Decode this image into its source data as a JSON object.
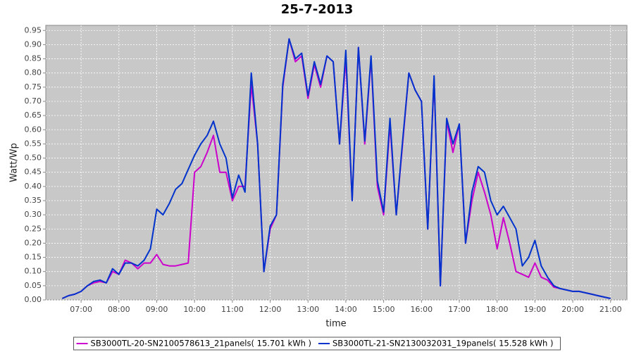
{
  "chart_data": {
    "type": "line",
    "title": "25-7-2013",
    "xlabel": "time",
    "ylabel": "Watt/Wp",
    "x": [
      390,
      400,
      410,
      420,
      430,
      440,
      450,
      460,
      470,
      480,
      490,
      500,
      510,
      520,
      530,
      540,
      550,
      560,
      570,
      580,
      590,
      600,
      610,
      620,
      630,
      640,
      650,
      660,
      670,
      680,
      690,
      700,
      710,
      720,
      730,
      740,
      750,
      760,
      770,
      780,
      790,
      800,
      810,
      820,
      830,
      840,
      850,
      860,
      870,
      880,
      890,
      900,
      910,
      920,
      930,
      940,
      950,
      960,
      970,
      980,
      990,
      1000,
      1010,
      1020,
      1030,
      1040,
      1050,
      1060,
      1070,
      1080,
      1090,
      1100,
      1110,
      1120,
      1130,
      1140,
      1150,
      1160,
      1170,
      1180,
      1190,
      1200,
      1210,
      1220,
      1230,
      1240,
      1250,
      1260
    ],
    "series": [
      {
        "name": "SB3000TL-20-SN2100578613_21panels( 15.701 kWh )",
        "color": "#cc00cc",
        "values": [
          0.005,
          0.015,
          0.02,
          0.03,
          0.05,
          0.06,
          0.065,
          0.06,
          0.1,
          0.09,
          0.14,
          0.13,
          0.11,
          0.13,
          0.13,
          0.16,
          0.125,
          0.12,
          0.12,
          0.125,
          0.13,
          0.45,
          0.47,
          0.52,
          0.58,
          0.45,
          0.45,
          0.35,
          0.4,
          0.4,
          0.76,
          0.55,
          0.1,
          0.25,
          0.3,
          0.75,
          0.92,
          0.84,
          0.86,
          0.71,
          0.83,
          0.75,
          0.86,
          0.84,
          0.55,
          0.85,
          0.35,
          0.89,
          0.55,
          0.85,
          0.4,
          0.3,
          0.62,
          0.3,
          0.55,
          0.8,
          0.74,
          0.7,
          0.25,
          0.78,
          0.05,
          0.63,
          0.52,
          0.62,
          0.2,
          0.35,
          0.45,
          0.38,
          0.3,
          0.18,
          0.29,
          0.2,
          0.1,
          0.09,
          0.08,
          0.13,
          0.08,
          0.07,
          0.045,
          0.04,
          0.035,
          0.03,
          0.03,
          0.025,
          0.02,
          0.015,
          0.01,
          0.005
        ]
      },
      {
        "name": "SB3000TL-21-SN2130032031_19panels( 15.528 kWh )",
        "color": "#0033cc",
        "values": [
          0.005,
          0.015,
          0.02,
          0.03,
          0.05,
          0.065,
          0.07,
          0.06,
          0.11,
          0.09,
          0.13,
          0.13,
          0.12,
          0.14,
          0.18,
          0.32,
          0.3,
          0.34,
          0.39,
          0.41,
          0.46,
          0.51,
          0.55,
          0.58,
          0.63,
          0.55,
          0.5,
          0.36,
          0.44,
          0.38,
          0.8,
          0.55,
          0.1,
          0.26,
          0.3,
          0.76,
          0.92,
          0.85,
          0.87,
          0.72,
          0.84,
          0.76,
          0.86,
          0.84,
          0.55,
          0.88,
          0.35,
          0.89,
          0.56,
          0.86,
          0.42,
          0.31,
          0.64,
          0.3,
          0.56,
          0.8,
          0.74,
          0.7,
          0.25,
          0.79,
          0.05,
          0.64,
          0.55,
          0.62,
          0.2,
          0.38,
          0.47,
          0.45,
          0.35,
          0.3,
          0.33,
          0.29,
          0.25,
          0.12,
          0.15,
          0.21,
          0.12,
          0.08,
          0.05,
          0.04,
          0.035,
          0.03,
          0.03,
          0.025,
          0.02,
          0.015,
          0.01,
          0.005
        ]
      }
    ],
    "xlim": [
      364,
      1286
    ],
    "xticks": [
      {
        "value": 420,
        "label": "07:00"
      },
      {
        "value": 480,
        "label": "08:00"
      },
      {
        "value": 540,
        "label": "09:00"
      },
      {
        "value": 600,
        "label": "10:00"
      },
      {
        "value": 660,
        "label": "11:00"
      },
      {
        "value": 720,
        "label": "12:00"
      },
      {
        "value": 780,
        "label": "13:00"
      },
      {
        "value": 840,
        "label": "14:00"
      },
      {
        "value": 900,
        "label": "15:00"
      },
      {
        "value": 960,
        "label": "16:00"
      },
      {
        "value": 1020,
        "label": "17:00"
      },
      {
        "value": 1080,
        "label": "18:00"
      },
      {
        "value": 1140,
        "label": "19:00"
      },
      {
        "value": 1200,
        "label": "20:00"
      },
      {
        "value": 1260,
        "label": "21:00"
      }
    ],
    "ylim": [
      0,
      0.968
    ],
    "yticks": [
      {
        "value": 0,
        "label": "0.00"
      },
      {
        "value": 0.05,
        "label": "0.05"
      },
      {
        "value": 0.1,
        "label": "0.10"
      },
      {
        "value": 0.15,
        "label": "0.15"
      },
      {
        "value": 0.2,
        "label": "0.20"
      },
      {
        "value": 0.25,
        "label": "0.25"
      },
      {
        "value": 0.3,
        "label": "0.30"
      },
      {
        "value": 0.35,
        "label": "0.35"
      },
      {
        "value": 0.4,
        "label": "0.40"
      },
      {
        "value": 0.45,
        "label": "0.45"
      },
      {
        "value": 0.5,
        "label": "0.50"
      },
      {
        "value": 0.55,
        "label": "0.55"
      },
      {
        "value": 0.6,
        "label": "0.60"
      },
      {
        "value": 0.65,
        "label": "0.65"
      },
      {
        "value": 0.7,
        "label": "0.70"
      },
      {
        "value": 0.75,
        "label": "0.75"
      },
      {
        "value": 0.8,
        "label": "0.80"
      },
      {
        "value": 0.85,
        "label": "0.85"
      },
      {
        "value": 0.9,
        "label": "0.90"
      },
      {
        "value": 0.95,
        "label": "0.95"
      }
    ],
    "grid": true,
    "legend": "bottom"
  }
}
